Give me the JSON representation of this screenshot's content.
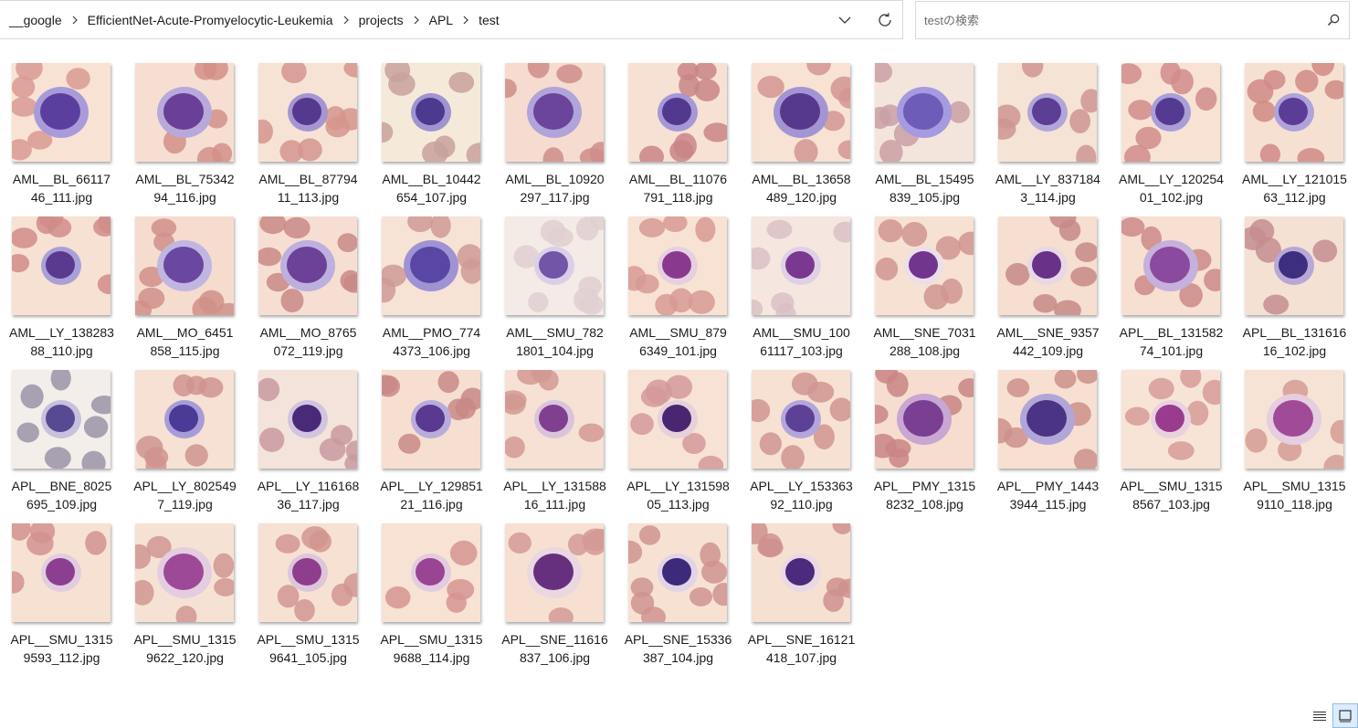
{
  "breadcrumb": [
    "__google",
    "EfficientNet-Acute-Promyelocytic-Leukemia",
    "projects",
    "APL",
    "test"
  ],
  "search": {
    "placeholder": "testの検索",
    "value": ""
  },
  "icons": {
    "crumb_separator": "chevron-right-icon",
    "history": "chevron-down-icon",
    "refresh": "refresh-icon",
    "search": "search-icon",
    "details_view": "details-view-icon",
    "large_icons_view": "large-icons-view-icon"
  },
  "files": [
    {
      "l1": "AML__BL_66117",
      "l2": "46_111.jpg",
      "bg": "#f8e2d4",
      "rbc": "#d99a92",
      "nuc": "#5b3f9e",
      "cyt": "#a99bd9",
      "big": true
    },
    {
      "l1": "AML__BL_75342",
      "l2": "94_116.jpg",
      "bg": "#f6dfd2",
      "rbc": "#d39089",
      "nuc": "#6a3f98",
      "cyt": "#b8a9da",
      "big": true
    },
    {
      "l1": "AML__BL_87794",
      "l2": "11_113.jpg",
      "bg": "#f7e3d5",
      "rbc": "#d5958e",
      "nuc": "#55398f",
      "cyt": "#a596d2",
      "big": false
    },
    {
      "l1": "AML__BL_10442",
      "l2": "654_107.jpg",
      "bg": "#f5ead9",
      "rbc": "#c8a19c",
      "nuc": "#4b3a8f",
      "cyt": "#9f94cf",
      "big": false
    },
    {
      "l1": "AML__BL_10920",
      "l2": "297_117.jpg",
      "bg": "#f6dcd0",
      "rbc": "#cf8d8a",
      "nuc": "#6b459c",
      "cyt": "#b1a4d9",
      "big": true
    },
    {
      "l1": "AML__BL_11076",
      "l2": "791_118.jpg",
      "bg": "#f7e1d4",
      "rbc": "#c98586",
      "nuc": "#533890",
      "cyt": "#a498d6",
      "big": false
    },
    {
      "l1": "AML__BL_13658",
      "l2": "489_120.jpg",
      "bg": "#f7e2d3",
      "rbc": "#d49590",
      "nuc": "#56388c",
      "cyt": "#a395d4",
      "big": true
    },
    {
      "l1": "AML__BL_15495",
      "l2": "839_105.jpg",
      "bg": "#f4e5dc",
      "rbc": "#c9a0a4",
      "nuc": "#6e5cb9",
      "cyt": "#a69ae0",
      "big": true
    },
    {
      "l1": "AML__LY_837184",
      "l2": "3_114.jpg",
      "bg": "#f5e3d5",
      "rbc": "#ce9592",
      "nuc": "#5c3e95",
      "cyt": "#b2a5d9",
      "big": false
    },
    {
      "l1": "AML__LY_120254",
      "l2": "01_102.jpg",
      "bg": "#f7e2d4",
      "rbc": "#d08c89",
      "nuc": "#553a92",
      "cyt": "#a99ed6",
      "big": false
    },
    {
      "l1": "AML__LY_121015",
      "l2": "63_112.jpg",
      "bg": "#f6e0d2",
      "rbc": "#d08a86",
      "nuc": "#5b3c97",
      "cyt": "#afa3d9",
      "big": false
    },
    {
      "l1": "AML__LY_138283",
      "l2": "88_110.jpg",
      "bg": "#f7e1d3",
      "rbc": "#d08c88",
      "nuc": "#5a3a8f",
      "cyt": "#aaa0d8",
      "big": false
    },
    {
      "l1": "AML__MO_6451",
      "l2": "858_115.jpg",
      "bg": "#f6dccf",
      "rbc": "#d09089",
      "nuc": "#6a47a0",
      "cyt": "#c1b6e0",
      "big": true
    },
    {
      "l1": "AML__MO_8765",
      "l2": "072_119.jpg",
      "bg": "#f6dfd2",
      "rbc": "#c98a86",
      "nuc": "#6b4298",
      "cyt": "#bdb0de",
      "big": true
    },
    {
      "l1": "AML__PMO_774",
      "l2": "4373_106.jpg",
      "bg": "#f6e3d6",
      "rbc": "#cf9a95",
      "nuc": "#5a46a4",
      "cyt": "#9f93d3",
      "big": true
    },
    {
      "l1": "AML__SMU_782",
      "l2": "1801_104.jpg",
      "bg": "#f4eae6",
      "rbc": "#e0cfd0",
      "nuc": "#7355a8",
      "cyt": "#d9cfe8",
      "big": false
    },
    {
      "l1": "AML__SMU_879",
      "l2": "6349_101.jpg",
      "bg": "#f8e2d4",
      "rbc": "#d79a94",
      "nuc": "#8a3a8e",
      "cyt": "#e7cfe2",
      "big": false
    },
    {
      "l1": "AML__SMU_100",
      "l2": "61117_103.jpg",
      "bg": "#f5e6e0",
      "rbc": "#dbbfc4",
      "nuc": "#7a3890",
      "cyt": "#e0d0e6",
      "big": false
    },
    {
      "l1": "AML__SNE_7031",
      "l2": "288_108.jpg",
      "bg": "#f7e1d2",
      "rbc": "#d09590",
      "nuc": "#72358e",
      "cyt": "#ecdfe8",
      "big": false
    },
    {
      "l1": "AML__SNE_9357",
      "l2": "442_109.jpg",
      "bg": "#f6ded0",
      "rbc": "#c78a86",
      "nuc": "#6a3188",
      "cyt": "#e8d8e5",
      "big": false
    },
    {
      "l1": "APL__BL_131582",
      "l2": "74_101.jpg",
      "bg": "#f7dfd1",
      "rbc": "#cb8a88",
      "nuc": "#8a4a9e",
      "cyt": "#c6b0dc",
      "big": true
    },
    {
      "l1": "APL__BL_131616",
      "l2": "16_102.jpg",
      "bg": "#f4e1d4",
      "rbc": "#c58d90",
      "nuc": "#3e2e80",
      "cyt": "#b7a8d6",
      "big": false
    },
    {
      "l1": "APL__BNE_8025",
      "l2": "695_109.jpg",
      "bg": "#f3eeea",
      "rbc": "#9a93a8",
      "nuc": "#574a92",
      "cyt": "#c8c0dc",
      "big": false
    },
    {
      "l1": "APL__LY_802549",
      "l2": "7_119.jpg",
      "bg": "#f6e1d4",
      "rbc": "#cf938f",
      "nuc": "#4c3a97",
      "cyt": "#a89cd8",
      "big": false
    },
    {
      "l1": "APL__LY_116168",
      "l2": "36_117.jpg",
      "bg": "#f4e3da",
      "rbc": "#c89aa0",
      "nuc": "#4a2a78",
      "cyt": "#d2c4e0",
      "big": false
    },
    {
      "l1": "APL__LY_129851",
      "l2": "21_116.jpg",
      "bg": "#f6dfd1",
      "rbc": "#c98a86",
      "nuc": "#5a3990",
      "cyt": "#b9acdc",
      "big": false
    },
    {
      "l1": "APL__LY_131588",
      "l2": "16_111.jpg",
      "bg": "#f6e1d4",
      "rbc": "#d29993",
      "nuc": "#81408f",
      "cyt": "#dcc3dc",
      "big": false
    },
    {
      "l1": "APL__LY_131598",
      "l2": "05_113.jpg",
      "bg": "#f7e2d5",
      "rbc": "#d3999a",
      "nuc": "#4a2670",
      "cyt": "#e6d0dc",
      "big": false
    },
    {
      "l1": "APL__LY_153363",
      "l2": "92_110.jpg",
      "bg": "#f7e1d3",
      "rbc": "#d09591",
      "nuc": "#5d4197",
      "cyt": "#b4a6da",
      "big": false
    },
    {
      "l1": "APL__PMY_1315",
      "l2": "8232_108.jpg",
      "bg": "#f6ddd0",
      "rbc": "#c98584",
      "nuc": "#7a3e93",
      "cyt": "#c8a7d2",
      "big": true
    },
    {
      "l1": "APL__PMY_1443",
      "l2": "3944_115.jpg",
      "bg": "#f7e0d2",
      "rbc": "#cc8f8b",
      "nuc": "#4b3485",
      "cyt": "#b2a6d8",
      "big": true
    },
    {
      "l1": "APL__SMU_1315",
      "l2": "8567_103.jpg",
      "bg": "#f7e4d7",
      "rbc": "#d79c96",
      "nuc": "#9a3c8e",
      "cyt": "#e8d2e0",
      "big": false
    },
    {
      "l1": "APL__SMU_1315",
      "l2": "9110_118.jpg",
      "bg": "#f7e3d6",
      "rbc": "#d59c95",
      "nuc": "#a14a98",
      "cyt": "#e6cde0",
      "big": true
    },
    {
      "l1": "APL__SMU_1315",
      "l2": "9593_112.jpg",
      "bg": "#f7e1d3",
      "rbc": "#d2928e",
      "nuc": "#8c3f90",
      "cyt": "#e2cde0",
      "big": false
    },
    {
      "l1": "APL__SMU_1315",
      "l2": "9622_120.jpg",
      "bg": "#f6e2d5",
      "rbc": "#d09691",
      "nuc": "#9d4998",
      "cyt": "#e4cde0",
      "big": true
    },
    {
      "l1": "APL__SMU_1315",
      "l2": "9641_105.jpg",
      "bg": "#f7e1d3",
      "rbc": "#d29590",
      "nuc": "#8e3e8d",
      "cyt": "#dec6da",
      "big": false
    },
    {
      "l1": "APL__SMU_1315",
      "l2": "9688_114.jpg",
      "bg": "#f7e2d4",
      "rbc": "#d5958f",
      "nuc": "#9a4494",
      "cyt": "#e3cce0",
      "big": false
    },
    {
      "l1": "APL__SNE_11616",
      "l2": "837_106.jpg",
      "bg": "#f7e0d2",
      "rbc": "#d39a95",
      "nuc": "#66307f",
      "cyt": "#ead7e2",
      "big": true
    },
    {
      "l1": "APL__SNE_15336",
      "l2": "387_104.jpg",
      "bg": "#f7e1d3",
      "rbc": "#cf938f",
      "nuc": "#3e2a7a",
      "cyt": "#e2d3e6",
      "big": false
    },
    {
      "l1": "APL__SNE_16121",
      "l2": "418_107.jpg",
      "bg": "#f6e0d2",
      "rbc": "#cf908d",
      "nuc": "#4c2a7c",
      "cyt": "#ead8e4",
      "big": false
    }
  ]
}
